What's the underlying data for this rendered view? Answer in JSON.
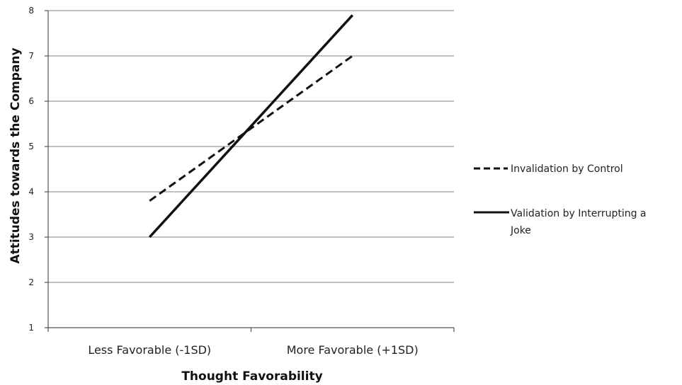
{
  "chart_data": {
    "type": "line",
    "title": "",
    "xlabel": "Thought Favorability",
    "ylabel": "Attitudes towards the Company",
    "categories": [
      "Less Favorable (-1SD)",
      "More Favorable (+1SD)"
    ],
    "ylim": [
      1,
      8
    ],
    "yticks": [
      "1",
      "2",
      "3",
      "4",
      "5",
      "6",
      "7",
      "8"
    ],
    "grid": true,
    "legend_position": "right",
    "series": [
      {
        "name": "Invalidation by Control",
        "style": "dashed",
        "color": "#111111",
        "values": [
          3.8,
          7.0
        ]
      },
      {
        "name": "Validation by Interrupting a Joke",
        "name_lines": [
          "Validation by Interrupting a",
          "Joke"
        ],
        "style": "solid",
        "color": "#111111",
        "values": [
          3.0,
          7.9
        ]
      }
    ]
  },
  "colors": {
    "gridline": "#9a9a9a",
    "axis": "#555555",
    "text": "#222222",
    "line": "#111111"
  }
}
